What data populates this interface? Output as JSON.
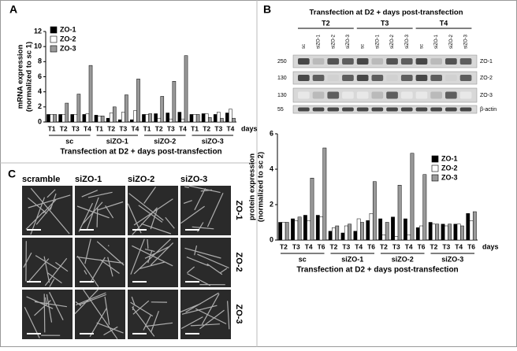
{
  "panel_labels": [
    "A",
    "B",
    "C"
  ],
  "chart_data": [
    {
      "type": "bar",
      "y_label": [
        "mRNA expression",
        "(normalized to sc 1)"
      ],
      "x_label": "Transfection at D2 + days post-transfection",
      "x_unit": "days",
      "groups": [
        "sc",
        "siZO-1",
        "siZO-2",
        "siZO-3"
      ],
      "subcategories": [
        "T1",
        "T2",
        "T3",
        "T4"
      ],
      "ylim": [
        0,
        12
      ],
      "yticks": [
        0,
        2,
        4,
        6,
        8,
        10,
        12
      ],
      "legend": "upper left",
      "series": [
        {
          "name": "ZO-1",
          "color": "#000000",
          "values": [
            1,
            1,
            1,
            1,
            0.9,
            0.5,
            0.3,
            0.3,
            1,
            1.1,
            1.2,
            1.3,
            1,
            1.1,
            1,
            1.2
          ]
        },
        {
          "name": "ZO-2",
          "color": "#ffffff",
          "values": [
            1,
            1,
            1,
            1.1,
            0.8,
            1.2,
            1.3,
            1.5,
            1,
            0.5,
            0.4,
            0.4,
            1,
            1.1,
            1.3,
            1.7
          ]
        },
        {
          "name": "ZO-3",
          "color": "#999999",
          "values": [
            1,
            2.5,
            3.7,
            7.5,
            0.8,
            2,
            3.6,
            5.7,
            1.1,
            3.4,
            5.4,
            8.8,
            1,
            0.6,
            0.5,
            0.5
          ]
        }
      ]
    },
    {
      "type": "bar",
      "y_label": [
        "protein expression",
        "(normalized to sc 2)"
      ],
      "x_label": "Transfection at D2 + days post-transfection",
      "x_unit": "days",
      "groups": [
        "sc",
        "siZO-1",
        "siZO-2",
        "siZO-3"
      ],
      "subcategories": [
        "T2",
        "T3",
        "T4",
        "T6"
      ],
      "ylim": [
        0,
        6
      ],
      "yticks": [
        0,
        2,
        4,
        6
      ],
      "legend": "upper right",
      "series": [
        {
          "name": "ZO-1",
          "color": "#000000",
          "values": [
            1,
            1.2,
            1.4,
            1.4,
            0.5,
            0.4,
            0.5,
            1.1,
            1.2,
            1.3,
            1.2,
            0.7,
            1,
            0.9,
            0.9,
            1.5
          ]
        },
        {
          "name": "ZO-2",
          "color": "#ffffff",
          "values": [
            1,
            1.1,
            1.1,
            1.3,
            0.7,
            0.8,
            1.2,
            1.5,
            0.3,
            0.2,
            0.3,
            0.8,
            0.9,
            0.8,
            0.9,
            1.1
          ]
        },
        {
          "name": "ZO-3",
          "color": "#999999",
          "values": [
            1,
            1.3,
            3.5,
            5.2,
            0.8,
            0.9,
            1,
            3.3,
            1,
            3.1,
            4.9,
            3.7,
            0.9,
            0.9,
            0.8,
            1.6
          ]
        }
      ]
    }
  ],
  "blot": {
    "title": "Transfection at D2 + days post-transfection",
    "groups": [
      "T2",
      "T3",
      "T4"
    ],
    "lanes": [
      "sc",
      "siZO-1",
      "siZO-2",
      "siZO-3"
    ],
    "markers": [
      250,
      130,
      130,
      55
    ],
    "bands": [
      "ZO-1",
      "ZO-2",
      "ZO-3",
      "β-actin"
    ]
  },
  "images": {
    "columns": [
      "scramble",
      "siZO-1",
      "siZO-2",
      "siZO-3"
    ],
    "rows": [
      "ZO-1",
      "ZO-2",
      "ZO-3"
    ]
  }
}
